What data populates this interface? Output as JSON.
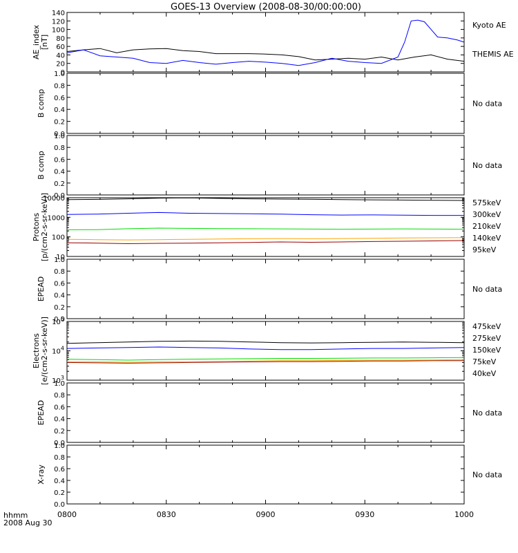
{
  "title": "GOES-13 Overview (2008-08-30/00:00:00)",
  "footer": {
    "line1": "hhmm",
    "line2": "2008 Aug 30"
  },
  "colors": {
    "black": "#000000",
    "blue": "#0000ff",
    "green": "#00dd00",
    "orange": "#ffa500",
    "darkred": "#990000"
  },
  "chart_data": [
    {
      "type": "line",
      "ylabel": [
        "AE_index",
        "[nT]"
      ],
      "xlim": [
        "0800",
        "1000"
      ],
      "xticks": [
        "0800",
        "0830",
        "0900",
        "0930",
        "1000"
      ],
      "ylim": [
        0,
        140
      ],
      "yticks": [
        "0",
        "20",
        "40",
        "60",
        "80",
        "100",
        "120",
        "140"
      ],
      "series": [
        {
          "name": "Kyoto AE",
          "color": "#000000",
          "x": [
            0,
            5,
            10,
            15,
            20,
            25,
            30,
            35,
            40,
            45,
            50,
            55,
            60,
            65,
            70,
            75,
            80,
            85,
            90,
            95,
            100,
            105,
            110,
            115,
            120
          ],
          "values": [
            48,
            52,
            55,
            45,
            52,
            54,
            55,
            50,
            48,
            43,
            43,
            43,
            42,
            40,
            36,
            28,
            30,
            32,
            30,
            35,
            28,
            35,
            40,
            30,
            25
          ]
        },
        {
          "name": "THEMIS AE",
          "color": "#0000ff",
          "x": [
            0,
            5,
            10,
            15,
            20,
            25,
            30,
            35,
            40,
            45,
            50,
            55,
            60,
            65,
            70,
            75,
            80,
            85,
            90,
            95,
            100,
            102,
            104,
            106,
            108,
            110,
            112,
            115,
            118,
            120
          ],
          "values": [
            45,
            52,
            38,
            35,
            32,
            22,
            20,
            27,
            22,
            18,
            22,
            25,
            23,
            20,
            15,
            22,
            32,
            25,
            22,
            20,
            35,
            70,
            120,
            122,
            118,
            100,
            82,
            80,
            75,
            70
          ]
        }
      ]
    },
    {
      "type": "line",
      "ylabel": [
        "B comp"
      ],
      "ylim": [
        0,
        1
      ],
      "yticks": [
        "0.0",
        "0.2",
        "0.4",
        "0.6",
        "0.8",
        "1.0"
      ],
      "status": "No data"
    },
    {
      "type": "line",
      "ylabel": [
        "B comp"
      ],
      "ylim": [
        0,
        1
      ],
      "yticks": [
        "0.0",
        "0.2",
        "0.4",
        "0.6",
        "0.8",
        "1.0"
      ],
      "status": "No data"
    },
    {
      "type": "line",
      "ylabel": [
        "Protons",
        "[p/(cm2-s-sr-keV)]"
      ],
      "yscale": "log",
      "ylim": [
        10,
        10000
      ],
      "yticks": [
        "10",
        "100",
        "1000",
        "10000"
      ],
      "series": [
        {
          "name": "575keV",
          "color": "#990000",
          "values": [
            50,
            48,
            45,
            47,
            48,
            50,
            52,
            55,
            53,
            55,
            58,
            60,
            62,
            65
          ]
        },
        {
          "name": "300keV",
          "color": "#ffa500",
          "values": [
            75,
            72,
            70,
            72,
            75,
            78,
            80,
            82,
            80,
            82,
            85,
            88,
            90,
            92
          ]
        },
        {
          "name": "210keV",
          "color": "#00dd00",
          "values": [
            230,
            235,
            260,
            280,
            270,
            265,
            260,
            255,
            250,
            245,
            250,
            255,
            250,
            245
          ]
        },
        {
          "name": "140keV",
          "color": "#0000ff",
          "values": [
            1400,
            1450,
            1600,
            1750,
            1600,
            1550,
            1500,
            1450,
            1350,
            1300,
            1320,
            1280,
            1250,
            1250
          ]
        },
        {
          "name": "95keV",
          "color": "#000000",
          "values": [
            8000,
            8200,
            8800,
            9500,
            9800,
            9200,
            8800,
            8500,
            8300,
            8000,
            7800,
            7600,
            7400,
            7200
          ]
        }
      ]
    },
    {
      "type": "line",
      "ylabel": [
        "EPEAD"
      ],
      "ylim": [
        0,
        1
      ],
      "yticks": [
        "0.0",
        "0.2",
        "0.4",
        "0.6",
        "0.8",
        "1.0"
      ],
      "status": "No data"
    },
    {
      "type": "line",
      "ylabel": [
        "Electrons",
        "[e/(cm2-s-sr-keV)]"
      ],
      "yscale": "log",
      "ylim": [
        1000,
        100000
      ],
      "yticks": [
        "10^3",
        "10^4",
        "10^5"
      ],
      "series": [
        {
          "name": "475keV",
          "color": "#990000",
          "values": [
            4000,
            3900,
            3800,
            3900,
            4000,
            4100,
            4200,
            4300,
            4300,
            4400,
            4500,
            4500,
            4600,
            4600
          ]
        },
        {
          "name": "275keV",
          "color": "#ffa500",
          "values": [
            4300,
            4200,
            4100,
            4200,
            4300,
            4400,
            4500,
            4600,
            4600,
            4700,
            4800,
            4800,
            4900,
            5000
          ]
        },
        {
          "name": "150keV",
          "color": "#00dd00",
          "values": [
            5200,
            5000,
            4800,
            5000,
            5200,
            5300,
            5400,
            5500,
            5500,
            5600,
            5700,
            5700,
            5800,
            5900
          ]
        },
        {
          "name": "75keV",
          "color": "#0000ff",
          "values": [
            12000,
            12500,
            13000,
            13500,
            13000,
            12500,
            11500,
            11000,
            11000,
            11500,
            12000,
            12000,
            12500,
            13000
          ]
        },
        {
          "name": "40keV",
          "color": "#000000",
          "values": [
            18000,
            19000,
            20000,
            21000,
            21500,
            21000,
            20000,
            19000,
            18500,
            19000,
            19500,
            20000,
            19500,
            19000
          ]
        }
      ]
    },
    {
      "type": "line",
      "ylabel": [
        "EPEAD"
      ],
      "ylim": [
        0,
        1
      ],
      "yticks": [
        "0.0",
        "0.2",
        "0.4",
        "0.6",
        "0.8",
        "1.0"
      ],
      "status": "No data"
    },
    {
      "type": "line",
      "ylabel": [
        "X-ray"
      ],
      "ylim": [
        0,
        1
      ],
      "yticks": [
        "0.0",
        "0.2",
        "0.4",
        "0.6",
        "0.8",
        "1.0"
      ],
      "status": "No data"
    }
  ]
}
